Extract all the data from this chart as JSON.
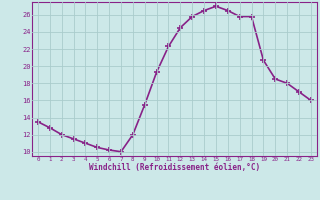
{
  "x": [
    0,
    1,
    2,
    3,
    4,
    5,
    6,
    7,
    8,
    9,
    10,
    11,
    12,
    13,
    14,
    15,
    16,
    17,
    18,
    19,
    20,
    21,
    22,
    23
  ],
  "y": [
    13.5,
    12.8,
    12.0,
    11.5,
    11.0,
    10.5,
    10.2,
    10.0,
    12.0,
    15.5,
    19.3,
    22.3,
    24.5,
    25.8,
    26.5,
    27.0,
    26.5,
    25.8,
    25.8,
    20.7,
    18.5,
    18.0,
    17.0,
    16.0
  ],
  "line_color": "#882288",
  "marker": "+",
  "marker_size": 4,
  "marker_lw": 1.2,
  "bg_color": "#cce8e8",
  "grid_color": "#aacccc",
  "xlabel": "Windchill (Refroidissement éolien,°C)",
  "ylim": [
    9.5,
    27.5
  ],
  "yticks": [
    10,
    12,
    14,
    16,
    18,
    20,
    22,
    24,
    26
  ],
  "xticks": [
    0,
    1,
    2,
    3,
    4,
    5,
    6,
    7,
    8,
    9,
    10,
    11,
    12,
    13,
    14,
    15,
    16,
    17,
    18,
    19,
    20,
    21,
    22,
    23
  ],
  "tick_color": "#882288",
  "label_color": "#882288",
  "axis_color": "#882288",
  "line_width": 1.2
}
